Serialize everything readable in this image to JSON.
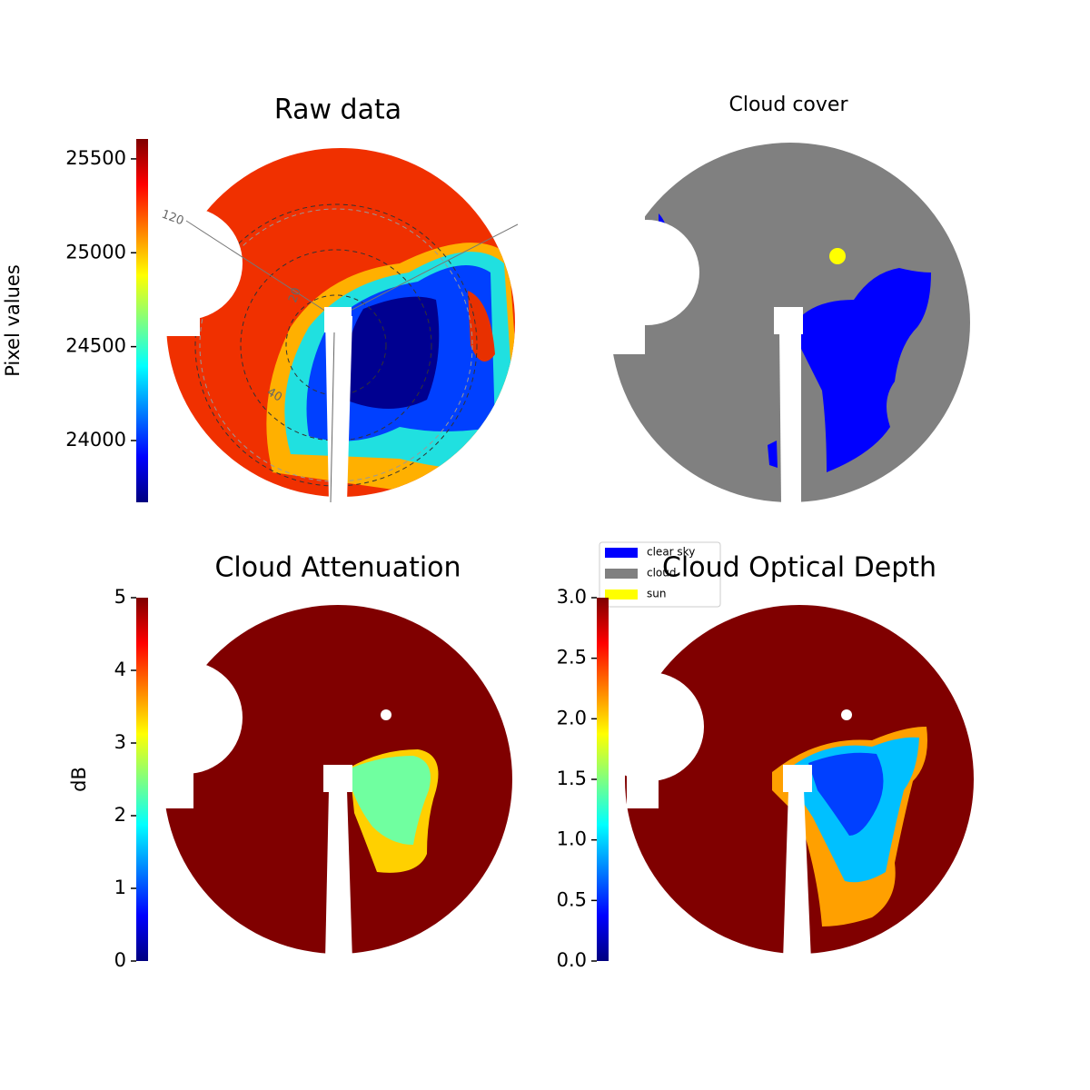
{
  "chart_data": [
    {
      "type": "heatmap",
      "title": "Raw data",
      "colorbar_label": "Pixel values",
      "colormap": "jet",
      "ylim": [
        23671,
        25606
      ],
      "yticks": [
        24000,
        24500,
        25000,
        25500
      ],
      "annotations": [
        "120",
        "20",
        "40"
      ]
    },
    {
      "type": "image",
      "title": "Cloud cover",
      "series": [
        {
          "name": "clear sky",
          "color": "#0000ff"
        },
        {
          "name": "cloud",
          "color": "#808080"
        },
        {
          "name": "sun",
          "color": "#ffff00"
        }
      ]
    },
    {
      "type": "heatmap",
      "title": "Cloud Attenuation",
      "colorbar_label": "dB",
      "colormap": "jet",
      "ylim": [
        0,
        5
      ],
      "yticks": [
        0,
        1,
        2,
        3,
        4,
        5
      ]
    },
    {
      "type": "heatmap",
      "title": "Cloud Optical Depth",
      "colormap": "jet",
      "ylim": [
        0,
        3
      ],
      "yticks": [
        {
          "value": 0,
          "label": "0.0"
        },
        0.5,
        {
          "value": 1,
          "label": "1.0"
        },
        1.5,
        {
          "value": 2,
          "label": "2.0"
        },
        2.5,
        {
          "value": 3,
          "label": "3.0"
        }
      ]
    }
  ]
}
